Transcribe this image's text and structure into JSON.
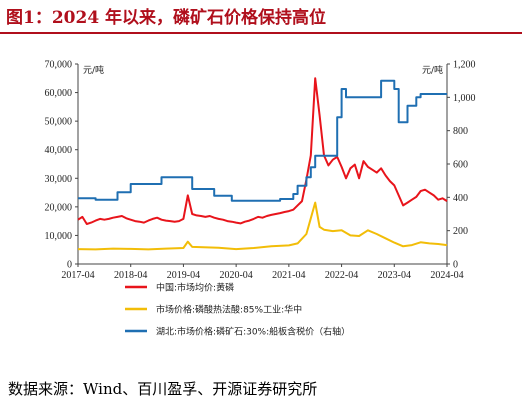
{
  "figure": {
    "title": "图1：2024 年以来，磷矿石价格保持高位",
    "source": "数据来源：Wind、百川盈孚、开源证券研究所"
  },
  "chart_data": {
    "type": "line",
    "left_axis": {
      "unit": "元/吨",
      "ylim": [
        0,
        70000
      ],
      "ticks": [
        0,
        10000,
        20000,
        30000,
        40000,
        50000,
        60000,
        70000
      ],
      "tick_labels": [
        "0",
        "10,000",
        "20,000",
        "30,000",
        "40,000",
        "50,000",
        "60,000",
        "70,000"
      ]
    },
    "right_axis": {
      "unit": "元/吨",
      "ylim": [
        0,
        1200
      ],
      "ticks": [
        0,
        200,
        400,
        600,
        800,
        1000,
        1200
      ],
      "tick_labels": [
        "0",
        "200",
        "400",
        "600",
        "800",
        "1,000",
        "1,200"
      ]
    },
    "x_axis": {
      "range": [
        "2017-04",
        "2024-04"
      ],
      "tick_labels": [
        "2017-04",
        "2018-04",
        "2019-04",
        "2020-04",
        "2021-04",
        "2022-04",
        "2023-04",
        "2024-04"
      ]
    },
    "legend_position": "bottom",
    "series": [
      {
        "name": "中国:市场均价:黄磷",
        "axis": "left",
        "color": "#e8141b",
        "points": [
          [
            "2017-04",
            15500
          ],
          [
            "2017-05",
            16500
          ],
          [
            "2017-06",
            14000
          ],
          [
            "2017-07",
            14500
          ],
          [
            "2017-08",
            15200
          ],
          [
            "2017-09",
            15800
          ],
          [
            "2017-10",
            15500
          ],
          [
            "2017-11",
            15800
          ],
          [
            "2017-12",
            16200
          ],
          [
            "2018-01",
            16500
          ],
          [
            "2018-02",
            16800
          ],
          [
            "2018-03",
            16000
          ],
          [
            "2018-04",
            15500
          ],
          [
            "2018-05",
            15000
          ],
          [
            "2018-06",
            14800
          ],
          [
            "2018-07",
            14500
          ],
          [
            "2018-08",
            15200
          ],
          [
            "2018-09",
            15800
          ],
          [
            "2018-10",
            16200
          ],
          [
            "2018-11",
            15500
          ],
          [
            "2018-12",
            15200
          ],
          [
            "2019-01",
            15000
          ],
          [
            "2019-02",
            14800
          ],
          [
            "2019-03",
            15000
          ],
          [
            "2019-04",
            15800
          ],
          [
            "2019-05",
            24000
          ],
          [
            "2019-06",
            17500
          ],
          [
            "2019-07",
            17000
          ],
          [
            "2019-08",
            16800
          ],
          [
            "2019-09",
            16500
          ],
          [
            "2019-10",
            16800
          ],
          [
            "2019-11",
            16200
          ],
          [
            "2019-12",
            15800
          ],
          [
            "2020-01",
            15500
          ],
          [
            "2020-02",
            15000
          ],
          [
            "2020-03",
            14800
          ],
          [
            "2020-04",
            14500
          ],
          [
            "2020-05",
            14200
          ],
          [
            "2020-06",
            14800
          ],
          [
            "2020-07",
            15200
          ],
          [
            "2020-08",
            15800
          ],
          [
            "2020-09",
            16500
          ],
          [
            "2020-10",
            16200
          ],
          [
            "2020-11",
            16800
          ],
          [
            "2020-12",
            17200
          ],
          [
            "2021-01",
            17500
          ],
          [
            "2021-02",
            17800
          ],
          [
            "2021-03",
            18200
          ],
          [
            "2021-04",
            18500
          ],
          [
            "2021-05",
            19000
          ],
          [
            "2021-06",
            20500
          ],
          [
            "2021-07",
            22000
          ],
          [
            "2021-08",
            29500
          ],
          [
            "2021-09",
            38000
          ],
          [
            "2021-10",
            65000
          ],
          [
            "2021-11",
            52000
          ],
          [
            "2021-12",
            38000
          ],
          [
            "2022-01",
            34500
          ],
          [
            "2022-02",
            36500
          ],
          [
            "2022-03",
            37500
          ],
          [
            "2022-04",
            34000
          ],
          [
            "2022-05",
            30000
          ],
          [
            "2022-06",
            33500
          ],
          [
            "2022-07",
            34800
          ],
          [
            "2022-08",
            30000
          ],
          [
            "2022-09",
            36000
          ],
          [
            "2022-10",
            34000
          ],
          [
            "2022-11",
            33000
          ],
          [
            "2022-12",
            32000
          ],
          [
            "2023-01",
            33500
          ],
          [
            "2023-02",
            31000
          ],
          [
            "2023-03",
            29000
          ],
          [
            "2023-04",
            27500
          ],
          [
            "2023-05",
            24000
          ],
          [
            "2023-06",
            20500
          ],
          [
            "2023-07",
            21500
          ],
          [
            "2023-08",
            22500
          ],
          [
            "2023-09",
            23500
          ],
          [
            "2023-10",
            25500
          ],
          [
            "2023-11",
            26000
          ],
          [
            "2023-12",
            25000
          ],
          [
            "2024-01",
            24000
          ],
          [
            "2024-02",
            22500
          ],
          [
            "2024-03",
            23000
          ],
          [
            "2024-04",
            22000
          ]
        ]
      },
      {
        "name": "市场价格:磷酸热法酸:85%工业:华中",
        "axis": "left",
        "color": "#f2bd08",
        "points": [
          [
            "2017-04",
            5200
          ],
          [
            "2017-08",
            5100
          ],
          [
            "2017-12",
            5400
          ],
          [
            "2018-04",
            5300
          ],
          [
            "2018-08",
            5100
          ],
          [
            "2018-12",
            5400
          ],
          [
            "2019-04",
            5600
          ],
          [
            "2019-05",
            7800
          ],
          [
            "2019-06",
            6000
          ],
          [
            "2019-12",
            5700
          ],
          [
            "2020-04",
            5200
          ],
          [
            "2020-08",
            5600
          ],
          [
            "2020-12",
            6200
          ],
          [
            "2021-04",
            6500
          ],
          [
            "2021-06",
            7200
          ],
          [
            "2021-08",
            10500
          ],
          [
            "2021-09",
            16000
          ],
          [
            "2021-10",
            21500
          ],
          [
            "2021-11",
            13000
          ],
          [
            "2021-12",
            12000
          ],
          [
            "2022-02",
            11500
          ],
          [
            "2022-04",
            11800
          ],
          [
            "2022-06",
            10000
          ],
          [
            "2022-08",
            9800
          ],
          [
            "2022-10",
            11800
          ],
          [
            "2022-12",
            10500
          ],
          [
            "2023-02",
            9000
          ],
          [
            "2023-04",
            7500
          ],
          [
            "2023-06",
            6200
          ],
          [
            "2023-08",
            6600
          ],
          [
            "2023-10",
            7600
          ],
          [
            "2023-12",
            7200
          ],
          [
            "2024-02",
            7000
          ],
          [
            "2024-04",
            6600
          ]
        ]
      },
      {
        "name": "湖北:市场价格:磷矿石:30%:船板含税价（右轴）",
        "axis": "right",
        "color": "#1f6fb2",
        "points": [
          [
            "2017-04",
            395
          ],
          [
            "2017-07",
            395
          ],
          [
            "2017-08",
            385
          ],
          [
            "2017-12",
            385
          ],
          [
            "2018-01",
            430
          ],
          [
            "2018-03",
            430
          ],
          [
            "2018-04",
            480
          ],
          [
            "2018-10",
            480
          ],
          [
            "2018-11",
            520
          ],
          [
            "2019-05",
            520
          ],
          [
            "2019-06",
            450
          ],
          [
            "2019-10",
            450
          ],
          [
            "2019-11",
            410
          ],
          [
            "2020-02",
            410
          ],
          [
            "2020-03",
            380
          ],
          [
            "2021-01",
            380
          ],
          [
            "2021-02",
            390
          ],
          [
            "2021-05",
            420
          ],
          [
            "2021-06",
            470
          ],
          [
            "2021-08",
            520
          ],
          [
            "2021-09",
            580
          ],
          [
            "2021-10",
            650
          ],
          [
            "2022-02",
            650
          ],
          [
            "2022-03",
            880
          ],
          [
            "2022-04",
            1050
          ],
          [
            "2022-05",
            1000
          ],
          [
            "2022-12",
            1000
          ],
          [
            "2023-01",
            1100
          ],
          [
            "2023-03",
            1100
          ],
          [
            "2023-04",
            1050
          ],
          [
            "2023-05",
            850
          ],
          [
            "2023-06",
            850
          ],
          [
            "2023-07",
            950
          ],
          [
            "2023-09",
            1000
          ],
          [
            "2023-10",
            1020
          ],
          [
            "2024-04",
            1020
          ]
        ]
      }
    ]
  }
}
